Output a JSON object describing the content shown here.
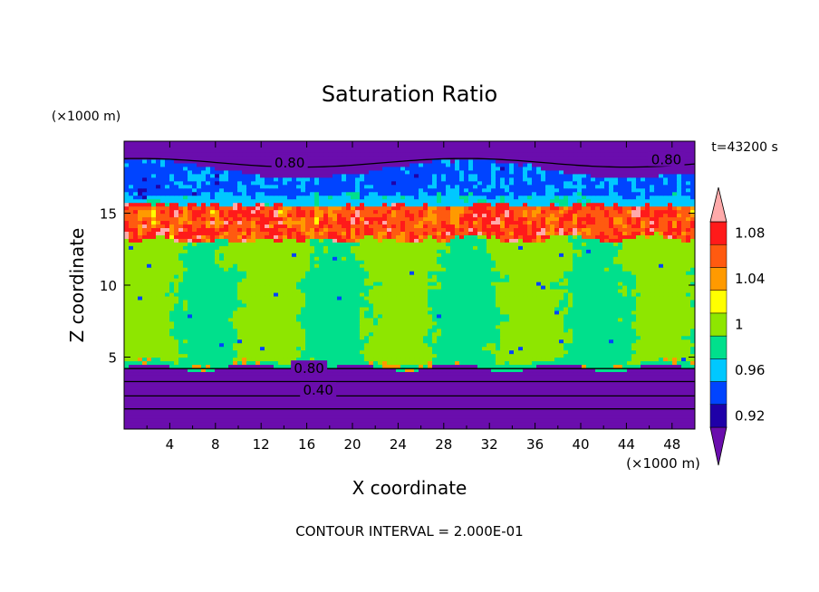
{
  "chart_data": {
    "type": "heatmap",
    "title": "Saturation Ratio",
    "xlabel": "X coordinate",
    "ylabel": "Z coordinate",
    "x_unit": "(×1000 m)",
    "y_unit": "(×1000 m)",
    "time_label": "t=43200 s",
    "footer": "CONTOUR INTERVAL = 2.000E-01",
    "xlim": [
      0,
      50
    ],
    "ylim": [
      0,
      20
    ],
    "x_ticks": [
      4,
      8,
      12,
      16,
      20,
      24,
      28,
      32,
      36,
      40,
      44,
      48
    ],
    "y_ticks": [
      5,
      10,
      15
    ],
    "colorbar": {
      "labels": [
        "0.92",
        "0.96",
        "1",
        "1.04",
        "1.08"
      ],
      "bins": [
        {
          "lo": null,
          "hi": 0.92,
          "color": "#6a0dad"
        },
        {
          "lo": 0.92,
          "hi": 0.94,
          "color": "#1f00a8"
        },
        {
          "lo": 0.94,
          "hi": 0.96,
          "color": "#0044ff"
        },
        {
          "lo": 0.96,
          "hi": 0.98,
          "color": "#00c8ff"
        },
        {
          "lo": 0.98,
          "hi": 1.0,
          "color": "#00e08c"
        },
        {
          "lo": 1.0,
          "hi": 1.02,
          "color": "#8ee600"
        },
        {
          "lo": 1.02,
          "hi": 1.04,
          "color": "#ffff00"
        },
        {
          "lo": 1.04,
          "hi": 1.06,
          "color": "#ff9a00"
        },
        {
          "lo": 1.06,
          "hi": 1.08,
          "color": "#ff5a10"
        },
        {
          "lo": 1.08,
          "hi": 1.1,
          "color": "#ff1a1a"
        },
        {
          "lo": 1.1,
          "hi": null,
          "color": "#ffaaaa"
        }
      ]
    },
    "contour_labels": [
      {
        "text": "0.80",
        "x": 14.5,
        "z": 18.5
      },
      {
        "text": "0.80",
        "x": 47.5,
        "z": 18.7
      },
      {
        "text": "0.80",
        "x": 16.2,
        "z": 4.2
      },
      {
        "text": "0.40",
        "x": 17.0,
        "z": 2.7
      }
    ],
    "regions_description": "Purple (<0.92) below ~4.3 km and above ~18 km; green (~1.0) mid troposphere 4.5–13 km; red/pink supersaturated band near 13–16 km; blue/cyan band 16–18 km"
  },
  "colors": {
    "background": "#ffffff",
    "axis": "#000000"
  }
}
